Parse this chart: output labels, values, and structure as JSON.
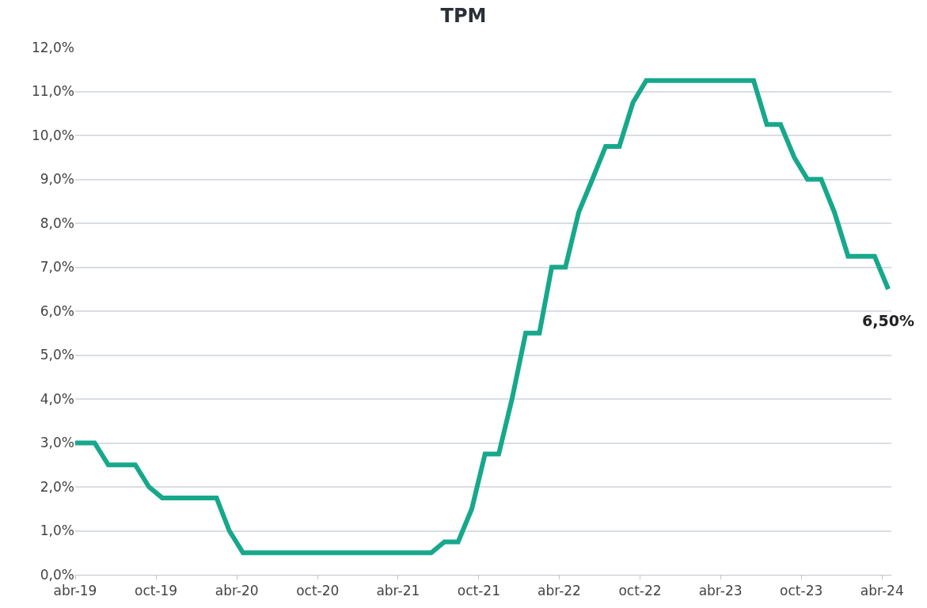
{
  "chart_data": {
    "type": "line",
    "title": "TPM",
    "x": [
      "2019-04-01",
      "2019-05-15",
      "2019-06-15",
      "2019-07-15",
      "2019-08-15",
      "2019-09-15",
      "2019-10-15",
      "2019-11-15",
      "2019-12-15",
      "2020-01-15",
      "2020-02-15",
      "2020-03-15",
      "2020-04-15",
      "2020-05-15",
      "2020-06-15",
      "2020-07-15",
      "2020-08-15",
      "2020-09-15",
      "2020-10-15",
      "2020-11-15",
      "2020-12-15",
      "2021-01-15",
      "2021-02-15",
      "2021-03-15",
      "2021-04-15",
      "2021-05-15",
      "2021-06-15",
      "2021-07-15",
      "2021-08-15",
      "2021-09-15",
      "2021-10-15",
      "2021-11-15",
      "2021-12-15",
      "2022-01-15",
      "2022-02-15",
      "2022-03-15",
      "2022-04-15",
      "2022-05-15",
      "2022-06-15",
      "2022-07-15",
      "2022-08-15",
      "2022-09-15",
      "2022-10-15",
      "2022-11-15",
      "2022-12-15",
      "2023-01-15",
      "2023-02-15",
      "2023-03-15",
      "2023-04-15",
      "2023-05-15",
      "2023-06-15",
      "2023-07-15",
      "2023-08-15",
      "2023-09-15",
      "2023-10-15",
      "2023-11-15",
      "2023-12-15",
      "2024-01-15",
      "2024-02-15",
      "2024-03-15",
      "2024-04-15"
    ],
    "series": [
      {
        "color": "#17a88b",
        "values": [
          3.0,
          3.0,
          2.5,
          2.5,
          2.5,
          2.0,
          1.75,
          1.75,
          1.75,
          1.75,
          1.75,
          1.0,
          0.5,
          0.5,
          0.5,
          0.5,
          0.5,
          0.5,
          0.5,
          0.5,
          0.5,
          0.5,
          0.5,
          0.5,
          0.5,
          0.5,
          0.5,
          0.75,
          0.75,
          1.5,
          2.75,
          2.75,
          4.0,
          5.5,
          5.5,
          7.0,
          7.0,
          8.25,
          9.0,
          9.75,
          9.75,
          10.75,
          11.25,
          11.25,
          11.25,
          11.25,
          11.25,
          11.25,
          11.25,
          11.25,
          11.25,
          10.25,
          10.25,
          9.5,
          9.0,
          9.0,
          8.25,
          7.25,
          7.25,
          7.25,
          6.5
        ]
      }
    ],
    "xlim": [
      "2019-04-01",
      "2024-04-22"
    ],
    "xticks": [
      {
        "value": "2019-04-01",
        "label": "abr-19"
      },
      {
        "value": "2019-10-01",
        "label": "oct-19"
      },
      {
        "value": "2020-04-01",
        "label": "abr-20"
      },
      {
        "value": "2020-10-01",
        "label": "oct-20"
      },
      {
        "value": "2021-04-01",
        "label": "abr-21"
      },
      {
        "value": "2021-10-01",
        "label": "oct-21"
      },
      {
        "value": "2022-04-01",
        "label": "abr-22"
      },
      {
        "value": "2022-10-01",
        "label": "oct-22"
      },
      {
        "value": "2023-04-01",
        "label": "abr-23"
      },
      {
        "value": "2023-10-01",
        "label": "oct-23"
      },
      {
        "value": "2024-04-01",
        "label": "abr-24"
      }
    ],
    "ylim": [
      0,
      12
    ],
    "yticks": [
      {
        "value": 0,
        "label": "0,0%"
      },
      {
        "value": 1,
        "label": "1,0%"
      },
      {
        "value": 2,
        "label": "2,0%"
      },
      {
        "value": 3,
        "label": "3,0%"
      },
      {
        "value": 4,
        "label": "4,0%"
      },
      {
        "value": 5,
        "label": "5,0%"
      },
      {
        "value": 6,
        "label": "6,0%"
      },
      {
        "value": 7,
        "label": "7,0%"
      },
      {
        "value": 8,
        "label": "8,0%"
      },
      {
        "value": 9,
        "label": "9,0%"
      },
      {
        "value": 10,
        "label": "10,0%"
      },
      {
        "value": 11,
        "label": "11,0%"
      },
      {
        "value": 12,
        "label": "12,0%"
      }
    ],
    "grid": "y",
    "marker": "none",
    "line_style": "solid",
    "annotations": [
      {
        "text": "6,50%",
        "x": "2024-04-15",
        "y": 6.5
      }
    ]
  }
}
